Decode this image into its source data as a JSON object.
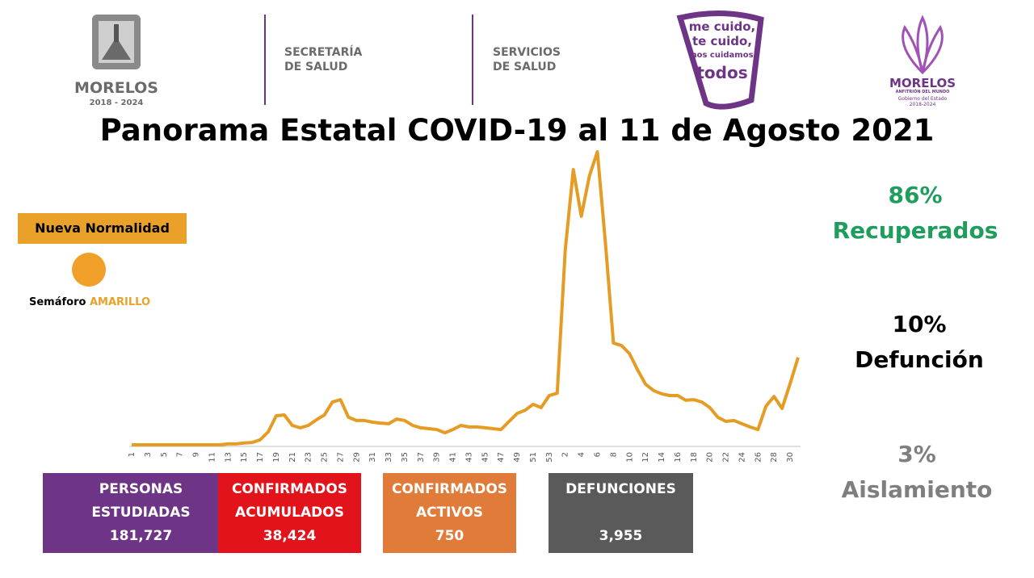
{
  "header": {
    "logo1": {
      "name": "MORELOS",
      "years": "2018 - 2024"
    },
    "logo2": [
      "SECRETARÍA",
      "DE SALUD"
    ],
    "logo3": [
      "SERVICIOS",
      "DE SALUD"
    ],
    "logo4": [
      "me cuido,",
      "te cuido,",
      "nos cuidamos",
      "todos"
    ],
    "logo5": {
      "name": "MORELOS",
      "tagline": "ANFITRIÓN DEL MUNDO",
      "gov": "Gobierno del Estado",
      "years": "2018-2024"
    }
  },
  "status": {
    "badge": "Nueva Normalidad",
    "semaforo": "Semáforo",
    "level": "AMARILLO"
  },
  "stats": [
    {
      "value": "86%",
      "label": "Recuperados"
    },
    {
      "value": "10%",
      "label": "Defunción"
    },
    {
      "value": "3%",
      "label": "Aislamiento"
    }
  ],
  "boxes": [
    {
      "lines": [
        "PERSONAS",
        "ESTUDIADAS"
      ],
      "value": "181,727",
      "color": "#6e3587"
    },
    {
      "lines": [
        "CONFIRMADOS",
        "ACUMULADOS"
      ],
      "value": "38,424",
      "color": "#e3131b"
    },
    {
      "lines": [
        "CONFIRMADOS",
        "ACTIVOS"
      ],
      "value": "750",
      "color": "#e07b39"
    },
    {
      "lines": [
        "DEFUNCIONES"
      ],
      "value": "3,955",
      "color": "#5a5a5a"
    }
  ],
  "chart_data": {
    "type": "line",
    "title": "Panorama Estatal COVID-19 al 11 de Agosto 2021",
    "categories": [
      "1",
      null,
      "3",
      null,
      "5",
      null,
      "7",
      null,
      "9",
      null,
      "11",
      null,
      "13",
      null,
      "15",
      null,
      "17",
      null,
      "19",
      null,
      "21",
      null,
      "23",
      null,
      "25",
      null,
      "27",
      null,
      "29",
      null,
      "31",
      null,
      "33",
      null,
      "35",
      null,
      "37",
      null,
      "39",
      null,
      "41",
      null,
      "43",
      null,
      "45",
      null,
      "47",
      null,
      "49",
      null,
      "51",
      null,
      "53",
      null,
      "2",
      null,
      "4",
      null,
      "6",
      null,
      "8",
      null,
      "10",
      null,
      "12",
      null,
      "14",
      null,
      "16",
      null,
      "18",
      null,
      "20",
      null,
      "22",
      null,
      "24",
      null,
      "26",
      null,
      "28",
      null,
      "30",
      null
    ],
    "series": [
      {
        "color": "#e59c24",
        "values": [
          0,
          0,
          0,
          0,
          0,
          0,
          0,
          0,
          0,
          0,
          0,
          0,
          0.3,
          0.3,
          0.6,
          0.8,
          1.7,
          4.4,
          9.9,
          10.2,
          6.6,
          5.8,
          6.6,
          8.5,
          10.2,
          14.6,
          15.4,
          9.4,
          8.3,
          8.3,
          7.7,
          7.4,
          7.2,
          8.8,
          8.3,
          6.6,
          5.8,
          5.5,
          5.2,
          4.1,
          5.2,
          6.6,
          6.1,
          6.1,
          5.8,
          5.5,
          5.2,
          8.0,
          10.7,
          11.8,
          13.8,
          12.7,
          16.8,
          17.6,
          66.4,
          93.9,
          78.0,
          91.7,
          100,
          69.1,
          34.7,
          33.9,
          31.1,
          25.6,
          20.7,
          18.5,
          17.4,
          16.8,
          16.8,
          15.2,
          15.4,
          14.6,
          12.7,
          9.4,
          8.0,
          8.3,
          7.2,
          6.1,
          5.2,
          13.2,
          16.5,
          12.4,
          20.9,
          29.8
        ]
      }
    ],
    "ylim": [
      0,
      100
    ]
  }
}
